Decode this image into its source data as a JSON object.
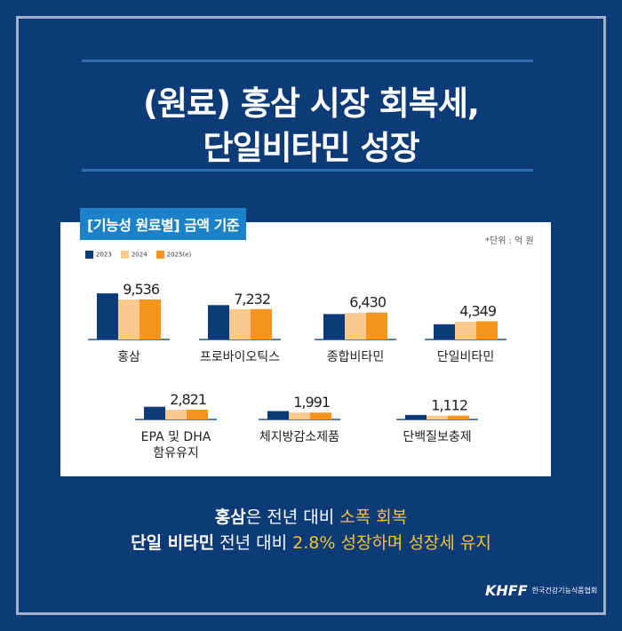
{
  "title": {
    "line1": "(원료) 홍삼 시장 회복세,",
    "line2": "단일비타민 성장"
  },
  "chart_data": {
    "type": "bar",
    "title": "[기능성 원료별] 금액 기준",
    "unit_note": "*단위 : 억 원",
    "series": [
      {
        "name": "2023",
        "color": "#0d3b78"
      },
      {
        "name": "2024",
        "color": "#fbc88e"
      },
      {
        "name": "2025(e)",
        "color": "#f7941d"
      }
    ],
    "categories": [
      {
        "label": "홍삼",
        "values": [
          10970,
          9520,
          9536
        ],
        "value_label": "9,536"
      },
      {
        "label": "프로바이오틱스",
        "values": [
          8180,
          7230,
          7232
        ],
        "value_label": "7,232"
      },
      {
        "label": "종합비타민",
        "values": [
          6050,
          6300,
          6430
        ],
        "value_label": "6,430"
      },
      {
        "label": "단일비타민",
        "values": [
          3630,
          4230,
          4349
        ],
        "value_label": "4,349"
      },
      {
        "label": "EPA 및 DHA",
        "label2": "함유유지",
        "values": [
          3670,
          2800,
          2821
        ],
        "value_label": "2,821"
      },
      {
        "label": "체지방감소제품",
        "values": [
          2430,
          1980,
          1991
        ],
        "value_label": "1,991"
      },
      {
        "label": "단백질보충제",
        "values": [
          1300,
          1100,
          1112
        ],
        "value_label": "1,112"
      }
    ]
  },
  "summary": {
    "l1a": "홍삼",
    "l1b": "은 전년 대비 ",
    "l1c": "소폭 회복",
    "l2a": "단일 비타민",
    "l2b": " 전년 대비 ",
    "l2c": "2.8% 성장하며 성장세 유지"
  },
  "logo": {
    "mark": "KHFF",
    "org": "한국건강기능식품협회"
  }
}
